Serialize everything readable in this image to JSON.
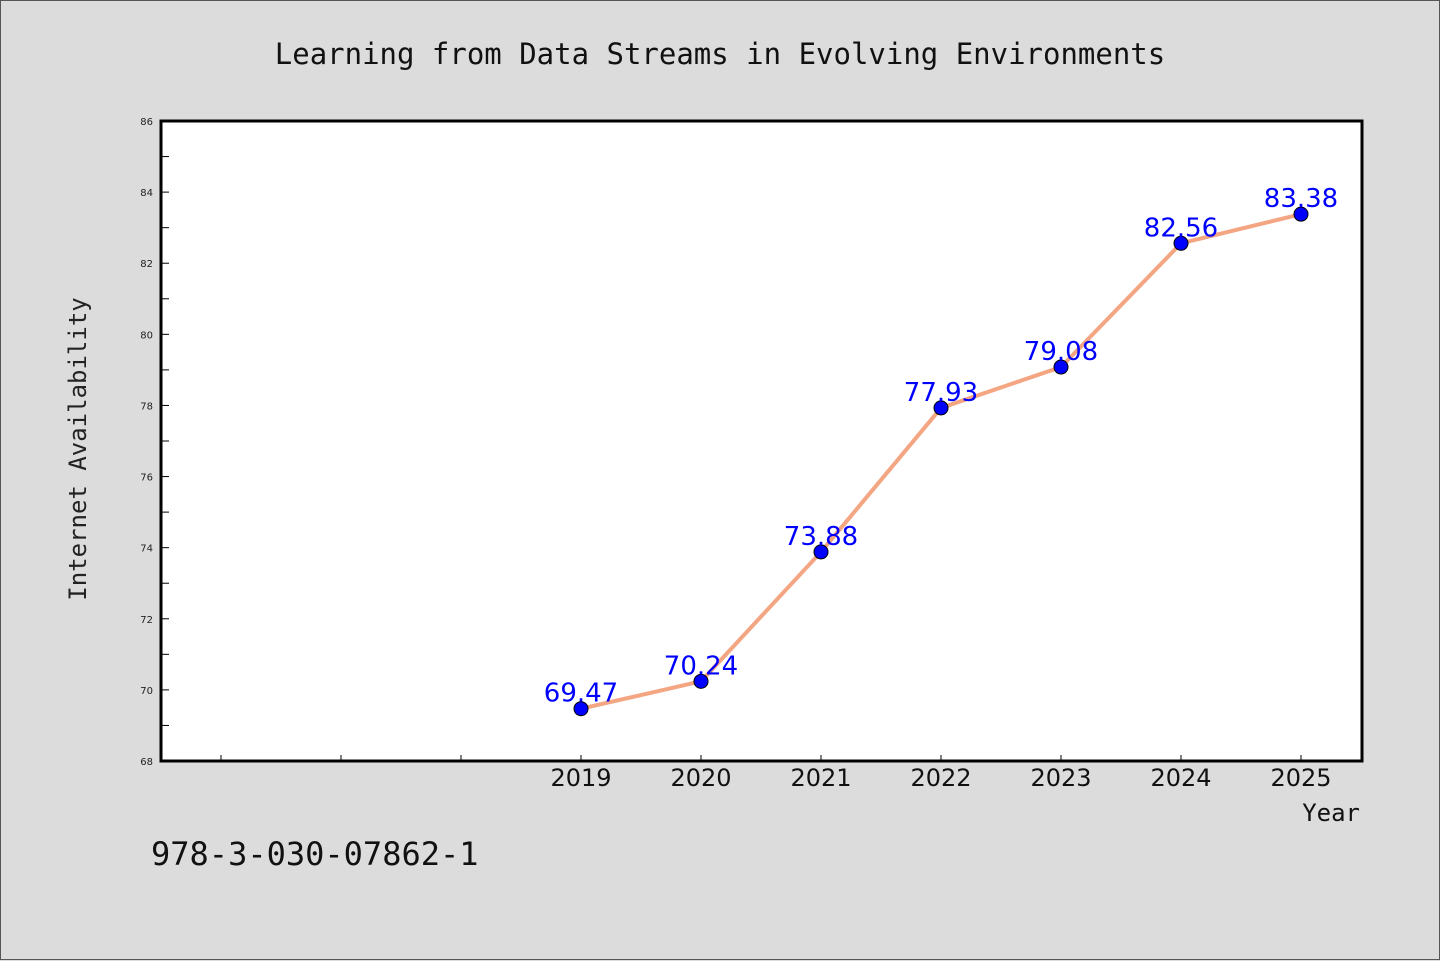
{
  "chart_data": {
    "type": "line",
    "title": "Learning from Data Streams in Evolving Environments",
    "xlabel": "Year",
    "ylabel": "Internet Availability",
    "categories": [
      "2019",
      "2020",
      "2021",
      "2022",
      "2023",
      "2024",
      "2025"
    ],
    "values": [
      69.47,
      70.24,
      73.88,
      77.93,
      79.08,
      82.56,
      83.38
    ],
    "data_labels": [
      "69.47",
      "70.24",
      "73.88",
      "77.93",
      "79.08",
      "82.56",
      "83.38"
    ],
    "ylim": [
      68,
      86
    ],
    "yticks": [
      "68",
      "70",
      "72",
      "74",
      "76",
      "78",
      "80",
      "82",
      "84",
      "86"
    ],
    "grid": false,
    "line_color": "#f4a582",
    "marker_color": "#0000ff",
    "label_color": "#0000ff"
  },
  "footer": {
    "isbn": "978-3-030-07862-1"
  }
}
